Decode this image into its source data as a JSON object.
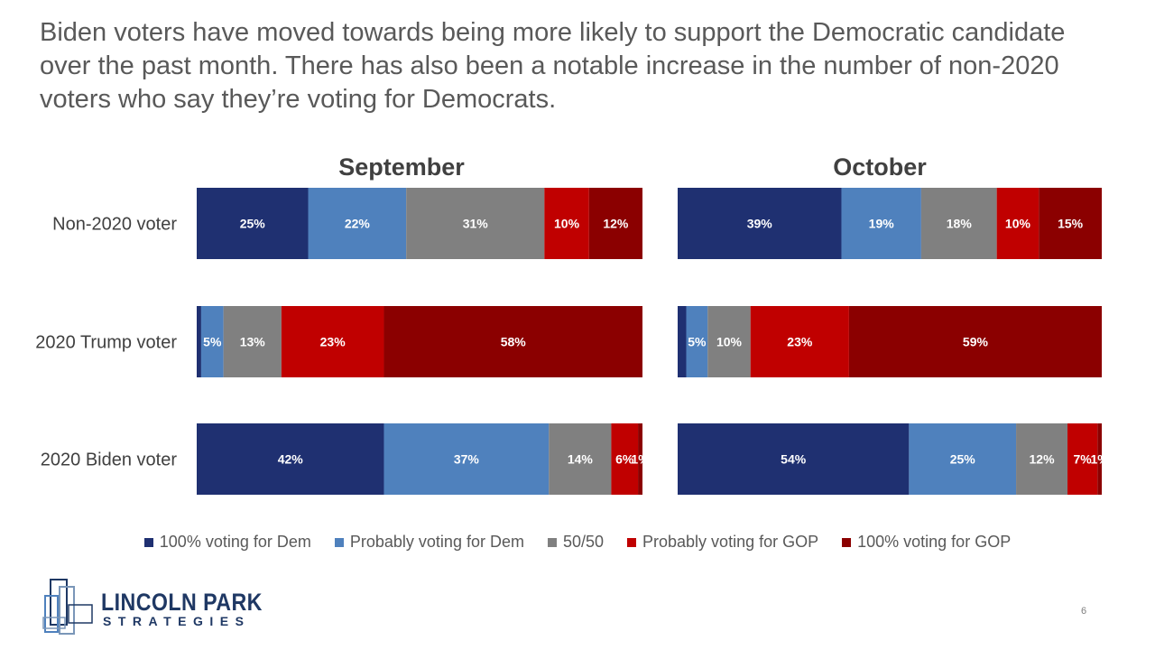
{
  "headline": "Biden voters have moved towards being more likely to support the Democratic candidate over the past month. There has also been a notable increase in the number of non-2020 voters who say they’re voting for Democrats.",
  "chart_data": {
    "type": "bar",
    "orientation": "horizontal-stacked-100",
    "categories": [
      "Non-2020 voter",
      "2020 Trump voter",
      "2020 Biden voter"
    ],
    "legend_position": "bottom",
    "series_colors": [
      "#1f3071",
      "#4f81bd",
      "#808080",
      "#c00000",
      "#8b0000"
    ],
    "legend": [
      "100% voting for Dem",
      "Probably voting for Dem",
      "50/50",
      "Probably voting for GOP",
      "100% voting for GOP"
    ],
    "panels": [
      {
        "title": "September",
        "rows": [
          {
            "values": [
              25,
              22,
              31,
              10,
              12
            ],
            "labels": [
              "25%",
              "22%",
              "31%",
              "10%",
              "12%"
            ]
          },
          {
            "values": [
              1,
              5,
              13,
              23,
              58
            ],
            "labels": [
              "",
              "5%",
              "13%",
              "23%",
              "58%"
            ]
          },
          {
            "values": [
              42,
              37,
              14,
              6,
              1
            ],
            "labels": [
              "42%",
              "37%",
              "14%",
              "6%",
              "1%"
            ]
          }
        ]
      },
      {
        "title": "October",
        "rows": [
          {
            "values": [
              39,
              19,
              18,
              10,
              15
            ],
            "labels": [
              "39%",
              "19%",
              "18%",
              "10%",
              "15%"
            ]
          },
          {
            "values": [
              2,
              5,
              10,
              23,
              59
            ],
            "labels": [
              "",
              "5%",
              "10%",
              "23%",
              "59%"
            ]
          },
          {
            "values": [
              54,
              25,
              12,
              7,
              1
            ],
            "labels": [
              "54%",
              "25%",
              "12%",
              "7%",
              "1%"
            ]
          }
        ]
      }
    ]
  },
  "logo": {
    "name": "LINCOLN PARK",
    "sub": "STRATEGIES"
  },
  "page_number": "6"
}
